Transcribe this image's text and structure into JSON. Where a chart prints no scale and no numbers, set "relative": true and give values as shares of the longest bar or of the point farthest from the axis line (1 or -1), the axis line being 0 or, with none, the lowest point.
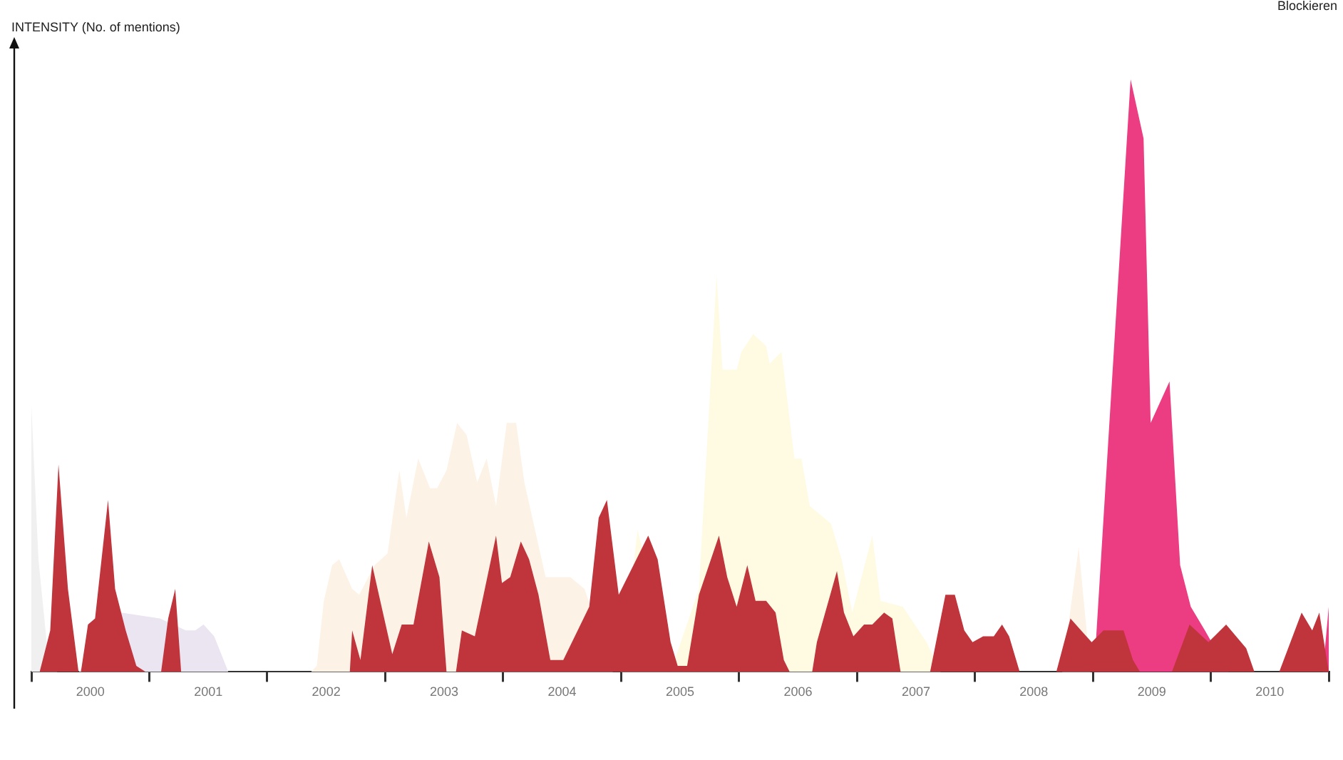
{
  "chart_data": {
    "type": "area",
    "ylabel": "INTENSITY (No. of mentions)",
    "relative": true,
    "legend": false,
    "grid": false,
    "marker": "none",
    "annotations": [
      "Blockieren"
    ],
    "xlim": [
      2000,
      2011
    ],
    "xticks": [
      {
        "value": 2000,
        "label": null
      },
      {
        "value": 2000.5,
        "label": "2000"
      },
      {
        "value": 2001,
        "label": null
      },
      {
        "value": 2001.5,
        "label": "2001"
      },
      {
        "value": 2002,
        "label": null
      },
      {
        "value": 2002.5,
        "label": "2002"
      },
      {
        "value": 2003,
        "label": null
      },
      {
        "value": 2003.5,
        "label": "2003"
      },
      {
        "value": 2004,
        "label": null
      },
      {
        "value": 2004.5,
        "label": "2004"
      },
      {
        "value": 2005,
        "label": null
      },
      {
        "value": 2005.5,
        "label": "2005"
      },
      {
        "value": 2006,
        "label": null
      },
      {
        "value": 2006.5,
        "label": "2006"
      },
      {
        "value": 2007,
        "label": null
      },
      {
        "value": 2007.5,
        "label": "2007"
      },
      {
        "value": 2008,
        "label": null
      },
      {
        "value": 2008.5,
        "label": "2008"
      },
      {
        "value": 2009,
        "label": null
      },
      {
        "value": 2009.5,
        "label": "2009"
      },
      {
        "value": 2010,
        "label": null
      },
      {
        "value": 2010.5,
        "label": "2010"
      },
      {
        "value": 2011,
        "label": null
      }
    ],
    "series": [
      {
        "color": "#f0f0f0",
        "x": [
          2000.0,
          2000.06,
          2000.13,
          2000.22
        ],
        "values": [
          0.45,
          0.19,
          0.05,
          0
        ]
      },
      {
        "color": "#fdf2e6",
        "x": [
          2002.37,
          2002.42,
          2002.48,
          2002.55,
          2002.61,
          2002.72,
          2002.78,
          2002.91,
          2003.02,
          2003.12,
          2003.18,
          2003.28,
          2003.38,
          2003.44,
          2003.52,
          2003.61,
          2003.69,
          2003.78,
          2003.86,
          2003.94,
          2004.03,
          2004.11,
          2004.18,
          2004.36,
          2004.57,
          2004.69,
          2004.81,
          2004.93,
          2008.74,
          2008.88,
          2008.98
        ],
        "values": [
          0,
          0.01,
          0.12,
          0.18,
          0.19,
          0.14,
          0.13,
          0.18,
          0.2,
          0.34,
          0.26,
          0.36,
          0.31,
          0.31,
          0.34,
          0.42,
          0.4,
          0.32,
          0.36,
          0.28,
          0.42,
          0.42,
          0.32,
          0.16,
          0.16,
          0.14,
          null,
          0,
          0,
          0.21,
          0
        ]
      },
      {
        "color": "#fffbe3",
        "x": [
          2005.0,
          2005.14,
          2005.27,
          2005.42,
          2005.66,
          2005.81,
          2005.86,
          2005.98,
          2006.02,
          2006.12,
          2006.23,
          2006.26,
          2006.36,
          2006.47,
          2006.53,
          2006.6,
          2006.66,
          2006.78,
          2006.87,
          2006.96,
          2007.13,
          2007.2,
          2007.39,
          2007.59,
          2007.71
        ],
        "values": [
          0,
          0.24,
          null,
          0,
          0.14,
          0.67,
          0.51,
          0.51,
          0.54,
          0.57,
          0.55,
          0.52,
          0.54,
          0.36,
          0.36,
          0.28,
          0.27,
          0.25,
          0.19,
          0.1,
          0.23,
          0.12,
          0.11,
          0.05,
          0
        ]
      },
      {
        "color": "#ebe4f1",
        "x": [
          2000.4,
          2000.48,
          2000.76,
          2001.09,
          2001.21,
          2001.31,
          2001.39,
          2001.46,
          2001.55,
          2001.67
        ],
        "values": [
          0,
          null,
          0.1,
          0.09,
          null,
          0.07,
          0.07,
          0.08,
          0.06,
          0
        ]
      },
      {
        "color": "#ec3c82",
        "x": [
          2009.01,
          2009.32,
          2009.43,
          2009.49,
          2009.65,
          2009.74,
          2009.83,
          2009.95,
          2010.07,
          2010.15,
          2010.95,
          2011.0
        ],
        "values": [
          0,
          1,
          0.9,
          0.42,
          0.49,
          0.18,
          0.11,
          0.07,
          null,
          0,
          0,
          0.11
        ]
      },
      {
        "color": "#c0343c",
        "x": [
          2000.07,
          2000.16,
          2000.23,
          2000.31,
          2000.4,
          2000.42,
          2000.48,
          2000.54,
          2000.65,
          2000.71,
          2000.8,
          2000.89,
          2000.97,
          2001.1,
          2001.16,
          2001.22,
          2001.27,
          2002.7,
          2002.72,
          2002.79,
          2002.89,
          2003.06,
          2003.14,
          2003.24,
          2003.37,
          2003.46,
          2003.52,
          2003.6,
          2003.65,
          2003.76,
          2003.94,
          2003.99,
          2004.06,
          2004.15,
          2004.22,
          2004.3,
          2004.4,
          2004.51,
          2004.73,
          2004.81,
          2004.88,
          2004.98,
          2005.23,
          2005.31,
          2005.42,
          2005.48,
          2005.56,
          2005.66,
          2005.83,
          2005.9,
          2005.98,
          2006.07,
          2006.14,
          2006.23,
          2006.31,
          2006.38,
          2006.43,
          2006.62,
          2006.66,
          2006.83,
          2006.89,
          2006.97,
          2007.06,
          2007.13,
          2007.23,
          2007.3,
          2007.37,
          2007.62,
          2007.75,
          2007.83,
          2007.91,
          2007.98,
          2008.07,
          2008.16,
          2008.23,
          2008.29,
          2008.38,
          2008.69,
          2008.81,
          2008.9,
          2008.99,
          2009.09,
          2009.26,
          2009.34,
          2009.4,
          2009.67,
          2009.82,
          2009.98,
          2010.13,
          2010.3,
          2010.37,
          2010.58,
          2010.77,
          2010.86,
          2010.92,
          2011.0
        ],
        "values": [
          0,
          0.07,
          0.35,
          0.14,
          0,
          0,
          0.08,
          0.09,
          0.29,
          0.14,
          0.07,
          0.01,
          0,
          0,
          0.09,
          0.14,
          0,
          0,
          0.07,
          0.02,
          0.18,
          0.03,
          0.08,
          0.08,
          0.22,
          0.16,
          0,
          0,
          0.07,
          0.06,
          0.23,
          0.15,
          0.16,
          0.22,
          0.19,
          0.13,
          0.02,
          0.02,
          0.11,
          0.26,
          0.29,
          0.13,
          0.23,
          0.19,
          0.05,
          0.01,
          0.01,
          0.13,
          0.23,
          0.16,
          0.11,
          0.18,
          0.12,
          0.12,
          0.1,
          0.02,
          0,
          0,
          0.05,
          0.17,
          0.1,
          0.06,
          0.08,
          0.08,
          0.1,
          0.09,
          0,
          0,
          0.13,
          0.13,
          0.07,
          0.05,
          0.06,
          0.06,
          0.08,
          0.06,
          0,
          0,
          0.09,
          0.07,
          0.05,
          0.07,
          0.07,
          0.02,
          0,
          0,
          0.08,
          0.05,
          0.08,
          0.04,
          0,
          0,
          0.1,
          0.07,
          0.1,
          0
        ]
      }
    ]
  }
}
